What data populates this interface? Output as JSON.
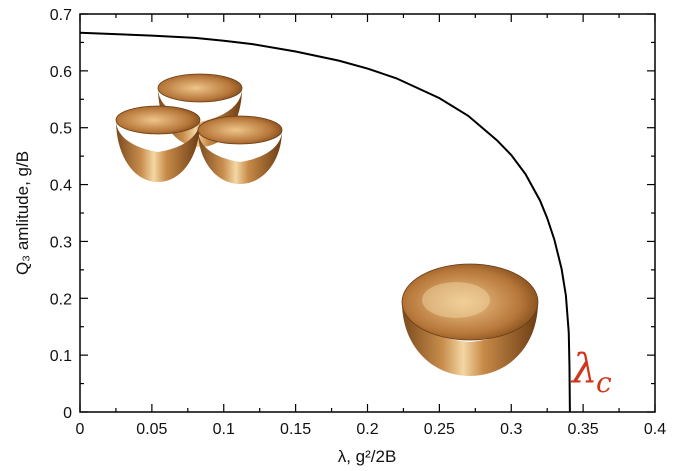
{
  "chart_data": {
    "type": "line",
    "title": "",
    "xlabel": "λ, g²/2B",
    "ylabel": "Q₃ amlitude, g/B",
    "xlim": [
      0,
      0.4
    ],
    "ylim": [
      0,
      0.7
    ],
    "x_ticks": [
      "0",
      "0.05",
      "0.1",
      "0.15",
      "0.2",
      "0.25",
      "0.3",
      "0.35",
      "0.4"
    ],
    "y_ticks": [
      "0",
      "0.1",
      "0.2",
      "0.3",
      "0.4",
      "0.5",
      "0.6",
      "0.7"
    ],
    "grid": false,
    "series": [
      {
        "color": "#000000",
        "x": [
          0,
          0.02,
          0.05,
          0.08,
          0.1,
          0.12,
          0.15,
          0.18,
          0.2,
          0.22,
          0.25,
          0.27,
          0.29,
          0.3,
          0.31,
          0.32,
          0.325,
          0.33,
          0.335,
          0.338,
          0.34,
          0.3405,
          0.3408
        ],
        "y": [
          0.667,
          0.665,
          0.662,
          0.658,
          0.653,
          0.647,
          0.634,
          0.618,
          0.604,
          0.587,
          0.552,
          0.521,
          0.478,
          0.452,
          0.418,
          0.372,
          0.341,
          0.303,
          0.252,
          0.205,
          0.14,
          0.08,
          0
        ]
      }
    ],
    "annotations": [
      {
        "text": "λ",
        "subscript": "c",
        "color": "#d0361c"
      }
    ],
    "insets": [
      {
        "icon": "three-paraboloid-wells-icon"
      },
      {
        "icon": "single-paraboloid-well-icon"
      }
    ]
  }
}
